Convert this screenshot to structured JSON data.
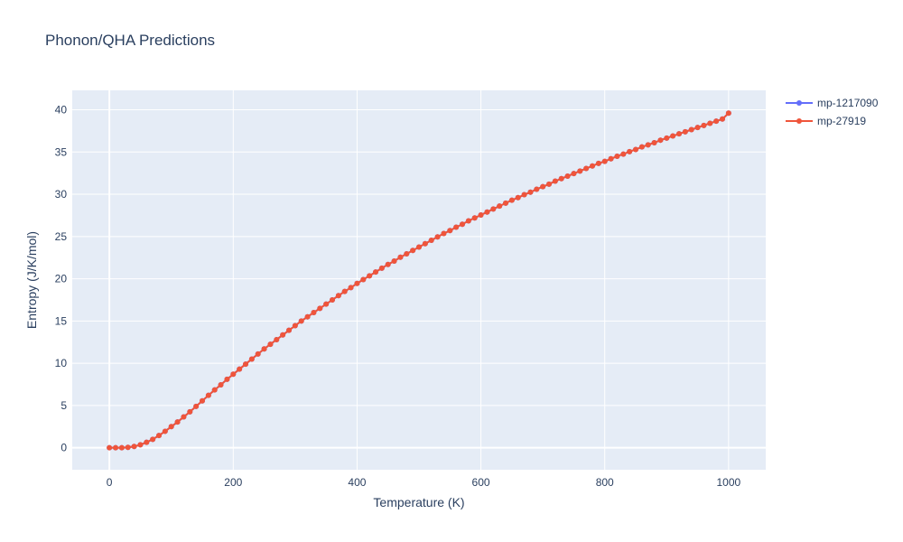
{
  "chart_data": {
    "type": "line",
    "title": "Phonon/QHA Predictions",
    "xlabel": "Temperature (K)",
    "ylabel": "Entropy (J/K/mol)",
    "xlim": [
      -60,
      1060
    ],
    "ylim": [
      -2.6,
      42.3
    ],
    "x_ticks": [
      0,
      200,
      400,
      600,
      800,
      1000
    ],
    "y_ticks": [
      0,
      5,
      10,
      15,
      20,
      25,
      30,
      35,
      40
    ],
    "grid": true,
    "legend_position": "top-right",
    "x": [
      0,
      10,
      20,
      30,
      40,
      50,
      60,
      70,
      80,
      90,
      100,
      110,
      120,
      130,
      140,
      150,
      160,
      170,
      180,
      190,
      200,
      210,
      220,
      230,
      240,
      250,
      260,
      270,
      280,
      290,
      300,
      310,
      320,
      330,
      340,
      350,
      360,
      370,
      380,
      390,
      400,
      410,
      420,
      430,
      440,
      450,
      460,
      470,
      480,
      490,
      500,
      510,
      520,
      530,
      540,
      550,
      560,
      570,
      580,
      590,
      600,
      610,
      620,
      630,
      640,
      650,
      660,
      670,
      680,
      690,
      700,
      710,
      720,
      730,
      740,
      750,
      760,
      770,
      780,
      790,
      800,
      810,
      820,
      830,
      840,
      850,
      860,
      870,
      880,
      890,
      900,
      910,
      920,
      930,
      940,
      950,
      960,
      970,
      980,
      990,
      1000
    ],
    "series": [
      {
        "name": "mp-1217090",
        "color": "#636efa",
        "values": [
          0,
          0,
          0.01,
          0.05,
          0.15,
          0.35,
          0.65,
          1.0,
          1.45,
          1.95,
          2.5,
          3.05,
          3.65,
          4.25,
          4.9,
          5.55,
          6.2,
          6.85,
          7.45,
          8.1,
          8.7,
          9.3,
          9.9,
          10.5,
          11.1,
          11.7,
          12.25,
          12.8,
          13.35,
          13.9,
          14.45,
          15.0,
          15.5,
          16.0,
          16.5,
          17.0,
          17.5,
          18.0,
          18.5,
          18.95,
          19.45,
          19.9,
          20.35,
          20.8,
          21.25,
          21.7,
          22.1,
          22.55,
          22.95,
          23.35,
          23.75,
          24.15,
          24.55,
          24.95,
          25.35,
          25.7,
          26.1,
          26.45,
          26.85,
          27.2,
          27.55,
          27.9,
          28.25,
          28.6,
          28.95,
          29.3,
          29.6,
          29.95,
          30.25,
          30.6,
          30.9,
          31.2,
          31.55,
          31.85,
          32.15,
          32.45,
          32.75,
          33.05,
          33.35,
          33.65,
          33.9,
          34.2,
          34.5,
          34.75,
          35.05,
          35.3,
          35.6,
          35.85,
          36.1,
          36.4,
          36.65,
          36.9,
          37.15,
          37.4,
          37.65,
          37.9,
          38.15,
          38.4,
          38.65,
          38.9,
          39.6
        ]
      },
      {
        "name": "mp-27919",
        "color": "#ef553b",
        "values": [
          0,
          0,
          0.01,
          0.05,
          0.15,
          0.35,
          0.65,
          1.0,
          1.45,
          1.95,
          2.5,
          3.05,
          3.65,
          4.25,
          4.9,
          5.55,
          6.2,
          6.85,
          7.45,
          8.1,
          8.7,
          9.3,
          9.9,
          10.5,
          11.1,
          11.7,
          12.25,
          12.8,
          13.35,
          13.9,
          14.45,
          15.0,
          15.5,
          16.0,
          16.5,
          17.0,
          17.5,
          18.0,
          18.5,
          18.95,
          19.45,
          19.9,
          20.35,
          20.8,
          21.25,
          21.7,
          22.1,
          22.55,
          22.95,
          23.35,
          23.75,
          24.15,
          24.55,
          24.95,
          25.35,
          25.7,
          26.1,
          26.45,
          26.85,
          27.2,
          27.55,
          27.9,
          28.25,
          28.6,
          28.95,
          29.3,
          29.6,
          29.95,
          30.25,
          30.6,
          30.9,
          31.2,
          31.55,
          31.85,
          32.15,
          32.45,
          32.75,
          33.05,
          33.35,
          33.65,
          33.9,
          34.2,
          34.5,
          34.75,
          35.05,
          35.3,
          35.6,
          35.85,
          36.1,
          36.4,
          36.65,
          36.9,
          37.15,
          37.4,
          37.65,
          37.9,
          38.15,
          38.4,
          38.65,
          38.9,
          39.6
        ]
      }
    ]
  },
  "colors": {
    "plot_background": "#e5ecf6",
    "grid": "#ffffff",
    "text": "#2a3f5f"
  }
}
